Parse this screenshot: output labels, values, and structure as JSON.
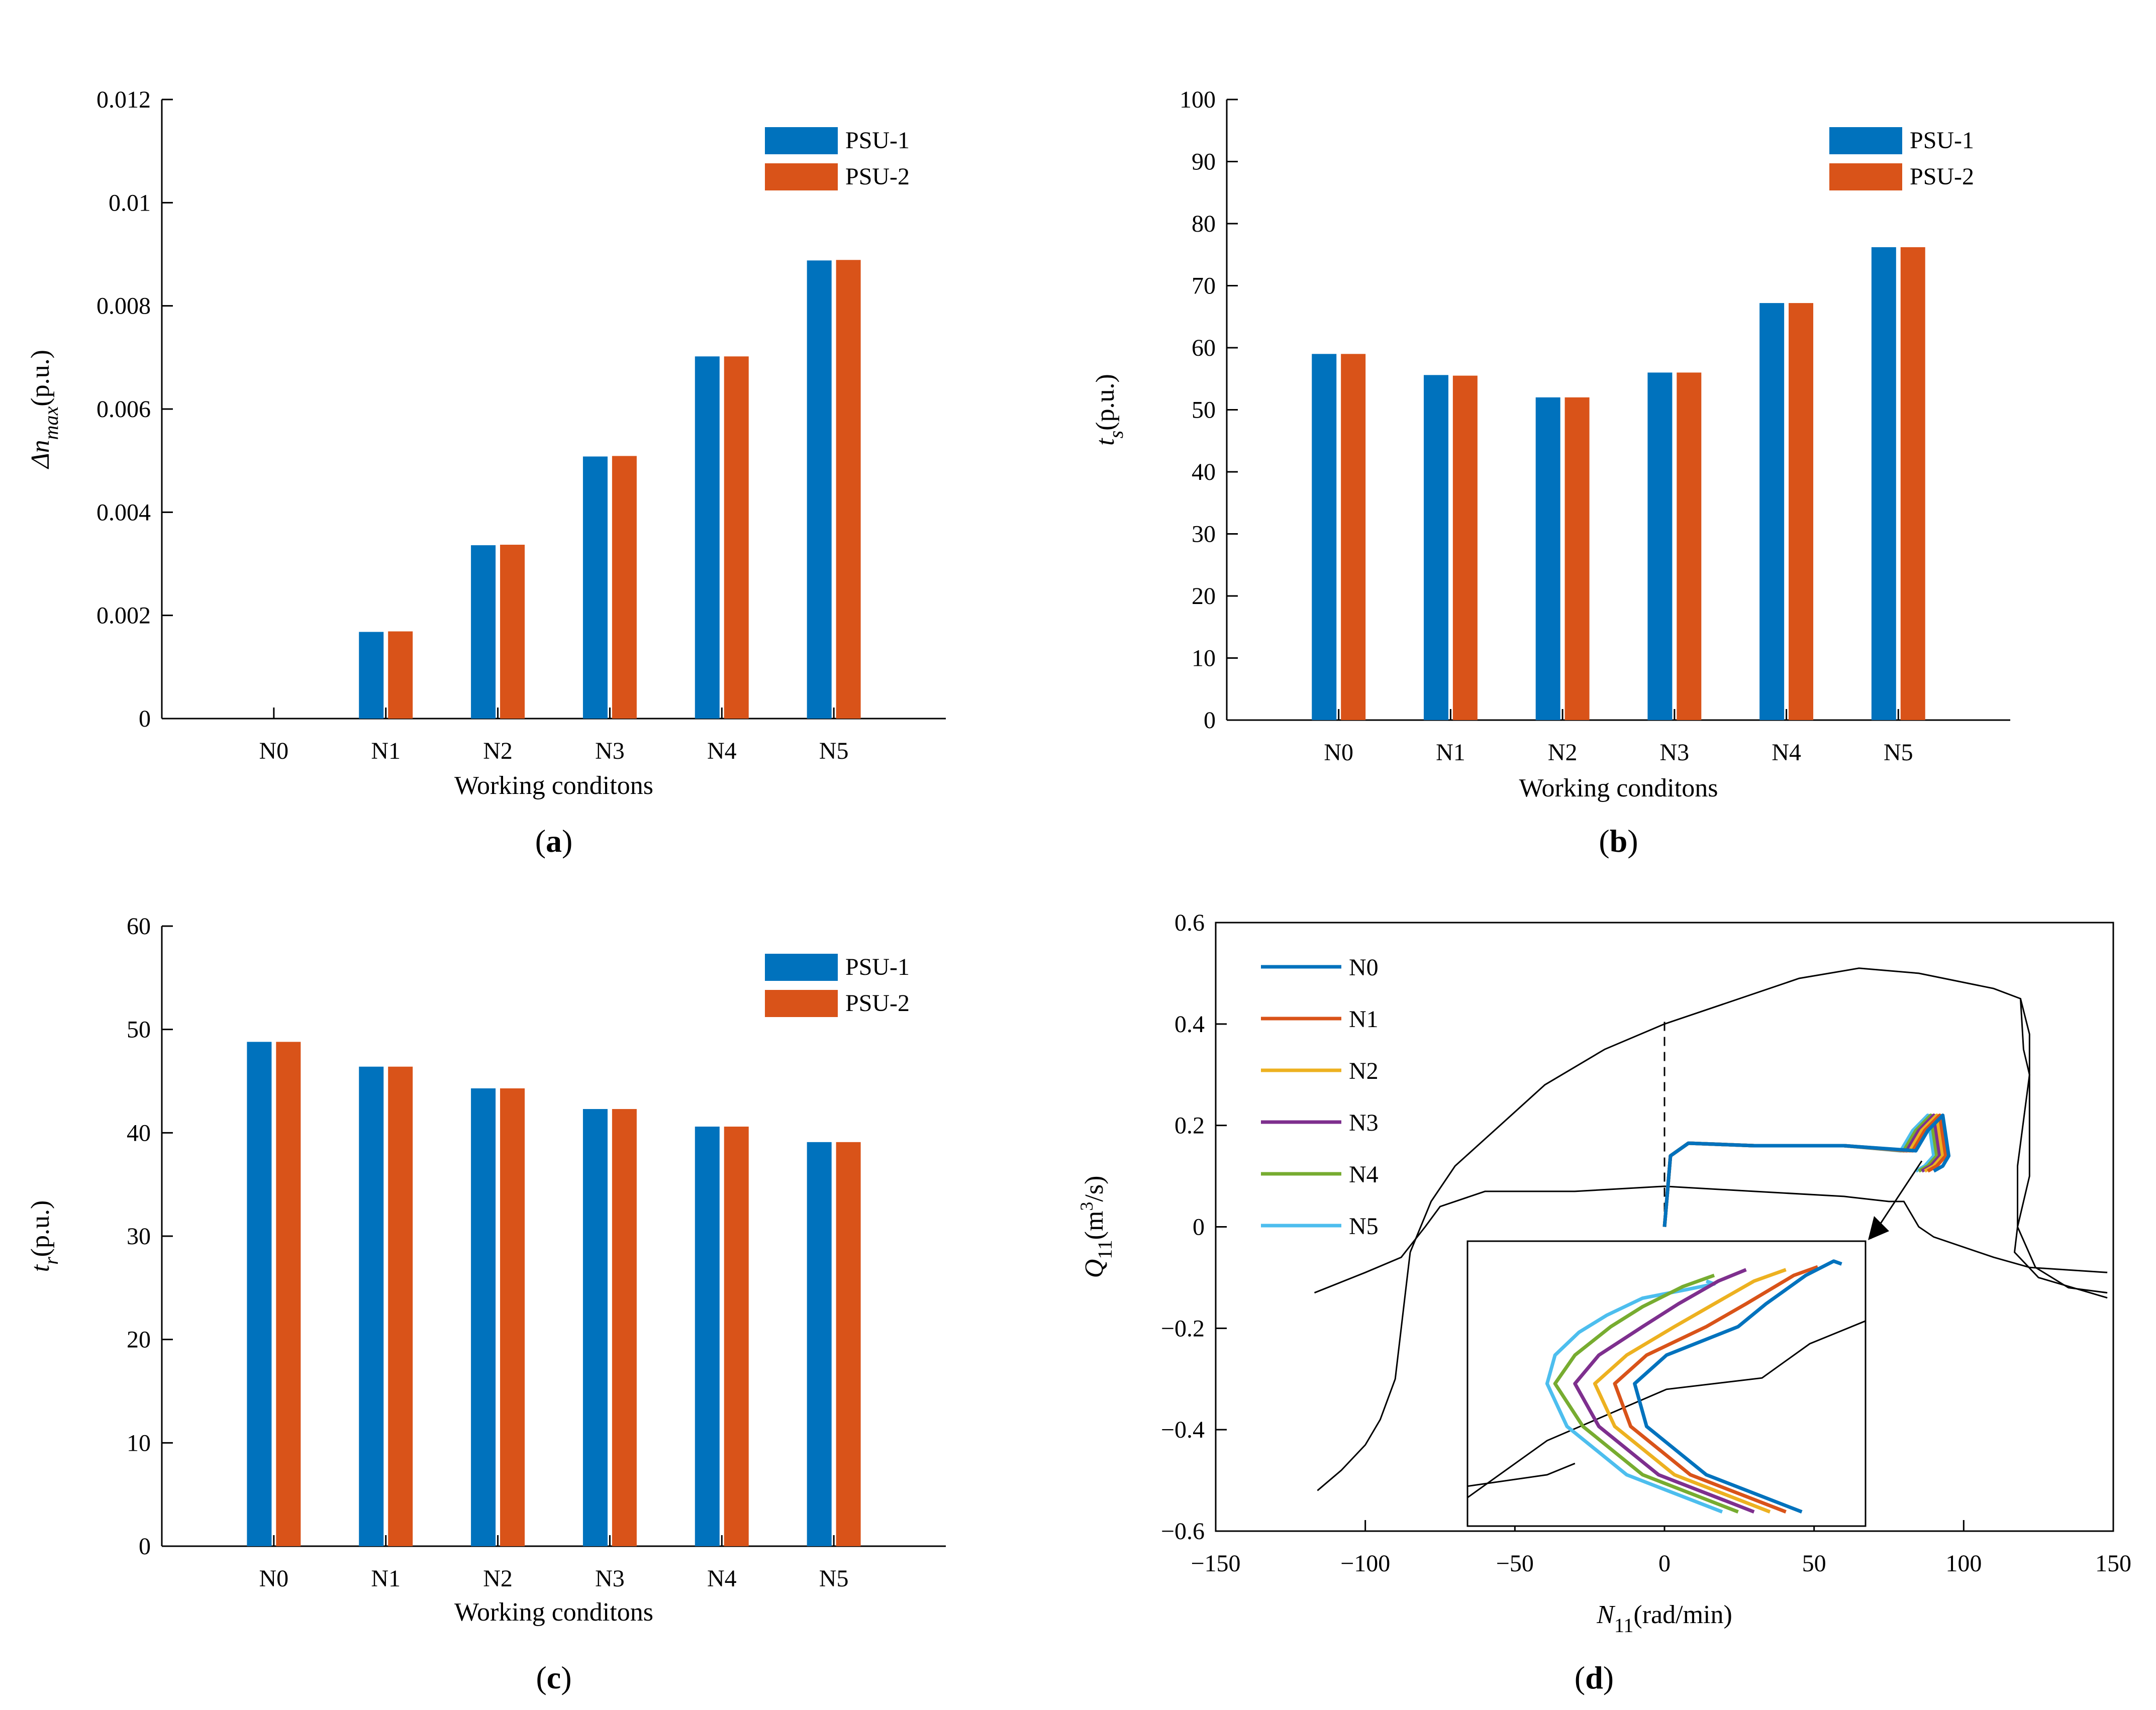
{
  "chart_data": [
    {
      "id": "a",
      "type": "bar",
      "panel_label": "(a)",
      "categories": [
        "N0",
        "N1",
        "N2",
        "N3",
        "N4",
        "N5"
      ],
      "series": [
        {
          "name": "PSU-1",
          "color": "#0072BD",
          "values": [
            0,
            0.00168,
            0.00336,
            0.00508,
            0.00702,
            0.00888
          ]
        },
        {
          "name": "PSU-2",
          "color": "#D95319",
          "values": [
            0,
            0.00169,
            0.00337,
            0.00509,
            0.00702,
            0.00889
          ]
        }
      ],
      "xlabel": "Working conditons",
      "ylabel_main": "Δn",
      "ylabel_sub": "max",
      "ylabel_unit": "(p.u.)",
      "ylim": [
        0,
        0.012
      ],
      "yticks": [
        "0",
        "0.002",
        "0.004",
        "0.006",
        "0.008",
        "0.01",
        "0.012"
      ],
      "legend_position": "top-right"
    },
    {
      "id": "b",
      "type": "bar",
      "panel_label": "(b)",
      "categories": [
        "N0",
        "N1",
        "N2",
        "N3",
        "N4",
        "N5"
      ],
      "series": [
        {
          "name": "PSU-1",
          "color": "#0072BD",
          "values": [
            59,
            55.6,
            52,
            56,
            67.2,
            76.2
          ]
        },
        {
          "name": "PSU-2",
          "color": "#D95319",
          "values": [
            59,
            55.5,
            52,
            56,
            67.2,
            76.2
          ]
        }
      ],
      "xlabel": "Working conditons",
      "ylabel_main": "t",
      "ylabel_sub": "s",
      "ylabel_unit": "(p.u.)",
      "ylim": [
        0,
        100
      ],
      "yticks": [
        "0",
        "10",
        "20",
        "30",
        "40",
        "50",
        "60",
        "70",
        "80",
        "90",
        "100"
      ],
      "legend_position": "top-right"
    },
    {
      "id": "c",
      "type": "bar",
      "panel_label": "(c)",
      "categories": [
        "N0",
        "N1",
        "N2",
        "N3",
        "N4",
        "N5"
      ],
      "series": [
        {
          "name": "PSU-1",
          "color": "#0072BD",
          "values": [
            48.8,
            46.4,
            44.3,
            42.3,
            40.6,
            39.1
          ]
        },
        {
          "name": "PSU-2",
          "color": "#D95319",
          "values": [
            48.8,
            46.4,
            44.3,
            42.3,
            40.6,
            39.1
          ]
        }
      ],
      "xlabel": "Working conditons",
      "ylabel_main": "t",
      "ylabel_sub": "r",
      "ylabel_unit": "(p.u.)",
      "ylim": [
        0,
        60
      ],
      "yticks": [
        "0",
        "10",
        "20",
        "30",
        "40",
        "50",
        "60"
      ],
      "legend_position": "top-right"
    },
    {
      "id": "d",
      "type": "line",
      "panel_label": "(d)",
      "xlabel_main": "N",
      "xlabel_sub": "11",
      "xlabel_unit": "(rad/min)",
      "ylabel_main": "Q",
      "ylabel_sub": "11",
      "ylabel_unit_pre": "(m",
      "ylabel_unit_sup": "3",
      "ylabel_unit_post": "/s)",
      "xlim": [
        -150,
        150
      ],
      "ylim": [
        -0.6,
        0.6
      ],
      "xticks": [
        "−150",
        "−100",
        "−50",
        "0",
        "50",
        "100",
        "150"
      ],
      "yticks": [
        "−0.6",
        "−0.4",
        "−0.2",
        "0",
        "0.2",
        "0.4",
        "0.6"
      ],
      "legend_position": "top-left",
      "boundary_curves": [
        {
          "name": "outer-envelope",
          "x": [
            -85,
            -78,
            -70,
            -55,
            -40,
            -20,
            0,
            20,
            45,
            65,
            85,
            110,
            119,
            120,
            122,
            122,
            118,
            117,
            125,
            148
          ],
          "y": [
            -0.05,
            0.05,
            0.12,
            0.2,
            0.28,
            0.35,
            0.4,
            0.44,
            0.49,
            0.51,
            0.5,
            0.47,
            0.45,
            0.35,
            0.3,
            0.1,
            0.0,
            -0.05,
            -0.1,
            -0.14
          ]
        },
        {
          "name": "left-envelope",
          "x": [
            -116,
            -108,
            -100,
            -95,
            -90,
            -88,
            -86,
            -85,
            -85
          ],
          "y": [
            -0.52,
            -0.48,
            -0.43,
            -0.38,
            -0.3,
            -0.2,
            -0.1,
            -0.05,
            -0.05
          ]
        },
        {
          "name": "lower-left",
          "x": [
            -117,
            -100,
            -88,
            -80,
            -75,
            -60,
            -30,
            0,
            30,
            60,
            75,
            80,
            82,
            85,
            90,
            110,
            122,
            148
          ],
          "y": [
            -0.13,
            -0.09,
            -0.06,
            0.0,
            0.04,
            0.07,
            0.07,
            0.08,
            0.07,
            0.06,
            0.05,
            0.05,
            0.03,
            0.0,
            -0.02,
            -0.06,
            -0.08,
            -0.09
          ]
        },
        {
          "name": "right-edge",
          "x": [
            119,
            122,
            122,
            118,
            118,
            124,
            135,
            148
          ],
          "y": [
            0.45,
            0.38,
            0.3,
            0.12,
            0.0,
            -0.08,
            -0.12,
            -0.13
          ]
        }
      ],
      "dashed_line": {
        "x": [
          0,
          0
        ],
        "y": [
          0.0,
          0.41
        ]
      },
      "series": [
        {
          "name": "N0",
          "color": "#0072BD",
          "x": [
            0,
            1,
            2,
            8,
            30,
            60,
            84,
            88,
            93,
            95,
            93,
            90
          ],
          "y": [
            0.0,
            0.07,
            0.14,
            0.165,
            0.16,
            0.16,
            0.15,
            0.19,
            0.22,
            0.14,
            0.12,
            0.11
          ]
        },
        {
          "name": "N1",
          "color": "#D95319",
          "x": [
            0,
            1,
            2,
            8,
            30,
            60,
            83,
            87,
            92,
            94,
            91,
            88
          ],
          "y": [
            0.0,
            0.07,
            0.14,
            0.165,
            0.16,
            0.16,
            0.15,
            0.19,
            0.22,
            0.14,
            0.12,
            0.11
          ]
        },
        {
          "name": "N2",
          "color": "#EDB120",
          "x": [
            0,
            1,
            2,
            8,
            30,
            60,
            82,
            86,
            91,
            93,
            90,
            87
          ],
          "y": [
            0.0,
            0.07,
            0.14,
            0.165,
            0.16,
            0.16,
            0.15,
            0.19,
            0.22,
            0.14,
            0.12,
            0.11
          ]
        },
        {
          "name": "N3",
          "color": "#7E2F8E",
          "x": [
            0,
            1,
            2,
            8,
            30,
            60,
            81,
            85,
            90,
            92,
            89,
            86
          ],
          "y": [
            0.0,
            0.07,
            0.14,
            0.165,
            0.16,
            0.16,
            0.15,
            0.19,
            0.22,
            0.14,
            0.12,
            0.11
          ]
        },
        {
          "name": "N4",
          "color": "#77AC30",
          "x": [
            0,
            1,
            2,
            8,
            30,
            60,
            80,
            84,
            89,
            91,
            88,
            85
          ],
          "y": [
            0.0,
            0.07,
            0.14,
            0.165,
            0.16,
            0.16,
            0.15,
            0.19,
            0.22,
            0.14,
            0.12,
            0.11
          ]
        },
        {
          "name": "N5",
          "color": "#4DBEEE",
          "x": [
            0,
            1,
            2,
            8,
            30,
            60,
            79,
            83,
            88,
            90,
            87,
            84
          ],
          "y": [
            0.0,
            0.07,
            0.14,
            0.165,
            0.16,
            0.16,
            0.15,
            0.19,
            0.22,
            0.14,
            0.12,
            0.11
          ]
        }
      ],
      "inset": {
        "description_zoom_of": "trajectory knee near N11≈90",
        "series": [
          {
            "name": "N0",
            "color": "#0072BD",
            "x": [
              0.84,
              0.6,
              0.45,
              0.42,
              0.5,
              0.68,
              0.75,
              0.85,
              0.92,
              0.94
            ],
            "y": [
              0.05,
              0.18,
              0.35,
              0.5,
              0.6,
              0.7,
              0.78,
              0.88,
              0.93,
              0.92
            ]
          },
          {
            "name": "N1",
            "color": "#D95319",
            "x": [
              0.8,
              0.56,
              0.41,
              0.37,
              0.45,
              0.6,
              0.7,
              0.82,
              0.88
            ],
            "y": [
              0.05,
              0.18,
              0.35,
              0.5,
              0.6,
              0.7,
              0.78,
              0.88,
              0.91
            ]
          },
          {
            "name": "N2",
            "color": "#EDB120",
            "x": [
              0.76,
              0.52,
              0.37,
              0.32,
              0.4,
              0.52,
              0.62,
              0.72,
              0.8
            ],
            "y": [
              0.05,
              0.18,
              0.35,
              0.5,
              0.6,
              0.7,
              0.78,
              0.86,
              0.9
            ]
          },
          {
            "name": "N3",
            "color": "#7E2F8E",
            "x": [
              0.72,
              0.48,
              0.33,
              0.27,
              0.33,
              0.44,
              0.53,
              0.63,
              0.7
            ],
            "y": [
              0.05,
              0.18,
              0.35,
              0.5,
              0.6,
              0.7,
              0.78,
              0.86,
              0.9
            ]
          },
          {
            "name": "N4",
            "color": "#77AC30",
            "x": [
              0.68,
              0.44,
              0.29,
              0.22,
              0.27,
              0.36,
              0.44,
              0.54,
              0.62
            ],
            "y": [
              0.05,
              0.18,
              0.35,
              0.5,
              0.6,
              0.7,
              0.77,
              0.84,
              0.88
            ]
          },
          {
            "name": "N5",
            "color": "#4DBEEE",
            "x": [
              0.64,
              0.4,
              0.25,
              0.2,
              0.22,
              0.28,
              0.35,
              0.44,
              0.55,
              0.62,
              0.6
            ],
            "y": [
              0.05,
              0.18,
              0.35,
              0.5,
              0.6,
              0.68,
              0.74,
              0.8,
              0.83,
              0.85,
              0.86
            ]
          }
        ],
        "boundary": {
          "x": [
            0.0,
            0.2,
            0.5,
            0.74,
            0.86,
            1.0
          ],
          "y": [
            0.9,
            0.7,
            0.52,
            0.48,
            0.36,
            0.28
          ]
        },
        "boundary2": {
          "x": [
            0.0,
            0.2,
            0.27
          ],
          "y": [
            0.14,
            0.18,
            0.22
          ]
        }
      }
    }
  ]
}
